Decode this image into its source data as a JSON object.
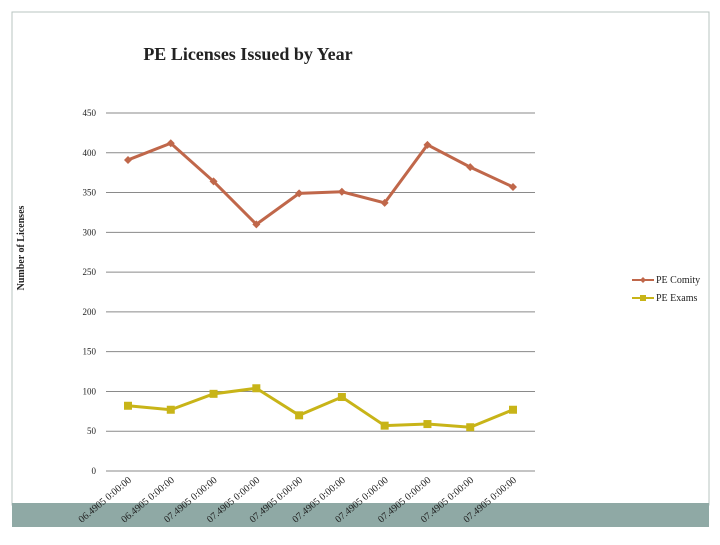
{
  "chart_data": {
    "type": "line",
    "title": "PE Licenses Issued by Year",
    "y_label": "Number of Licenses",
    "categories": [
      "06.4905 0:00:00",
      "06.4905 0:00:00",
      "07.4905 0:00:00",
      "07.4905 0:00:00",
      "07.4905 0:00:00",
      "07.4905 0:00:00",
      "07.4905 0:00:00",
      "07.4905 0:00:00",
      "07.4905 0:00:00",
      "07.4905 0:00:00"
    ],
    "series": [
      {
        "name": "PE Comity",
        "color": "#c0674a",
        "marker": "diamond",
        "values": [
          391,
          412,
          364,
          310,
          349,
          351,
          337,
          410,
          382,
          357
        ]
      },
      {
        "name": "PE Exams",
        "color": "#c8b418",
        "marker": "square",
        "values": [
          82,
          77,
          97,
          104,
          70,
          93,
          57,
          59,
          55,
          77
        ]
      }
    ],
    "ylim": [
      0,
      450
    ],
    "yticks": [
      0,
      50,
      100,
      150,
      200,
      250,
      300,
      350,
      400,
      450
    ],
    "grid": true,
    "legend": "right"
  }
}
